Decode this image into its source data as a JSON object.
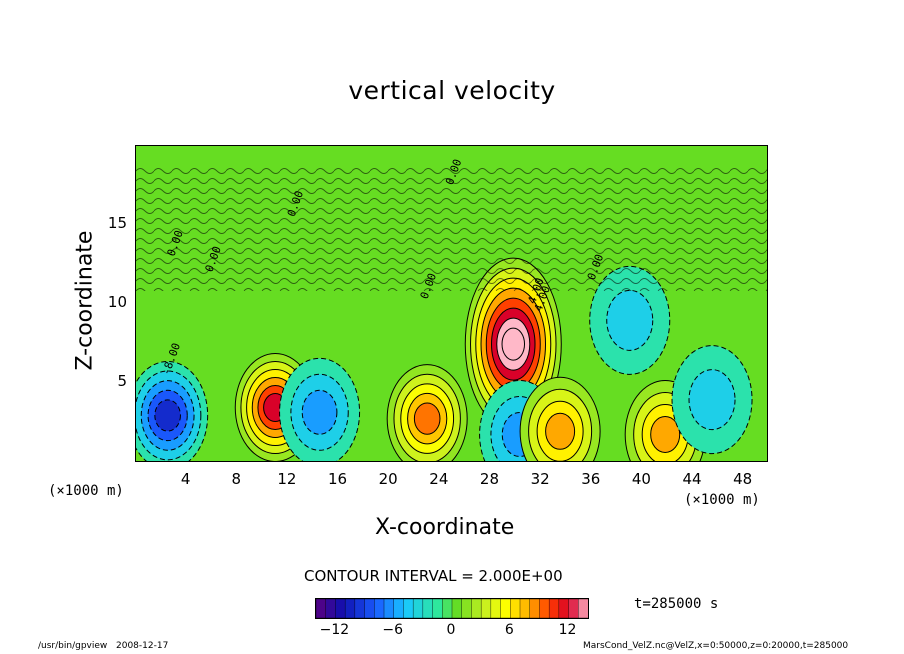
{
  "chart_data": {
    "type": "heatmap",
    "title": "vertical velocity",
    "xlabel": "X-coordinate",
    "ylabel": "Z-coordinate",
    "x_unit": "(×1000 m)",
    "y_unit": "(×1000 m)",
    "xlim": [
      0,
      50
    ],
    "ylim": [
      0,
      20
    ],
    "x_ticks": [
      "4",
      "8",
      "12",
      "16",
      "20",
      "24",
      "28",
      "32",
      "36",
      "40",
      "44",
      "48"
    ],
    "y_ticks": [
      "5",
      "10",
      "15"
    ],
    "contour_interval": "CONTOUR INTERVAL = 2.000E+00",
    "contour_labels": [
      "0.00",
      "-8.00",
      "4.00",
      "0.00",
      "0.00",
      "0.00",
      "0.00",
      "4.00",
      "0.00"
    ],
    "colorbar": {
      "range": [
        -14,
        14
      ],
      "ticks": [
        "−12",
        "−6",
        "0",
        "6",
        "12"
      ]
    },
    "features": [
      {
        "x": 2.5,
        "z": 3.0,
        "value": -10,
        "kind": "downdraft"
      },
      {
        "x": 11.0,
        "z": 3.5,
        "value": 12,
        "kind": "updraft"
      },
      {
        "x": 14.5,
        "z": 3.2,
        "value": -6,
        "kind": "downdraft"
      },
      {
        "x": 23.0,
        "z": 2.8,
        "value": 9,
        "kind": "updraft"
      },
      {
        "x": 29.8,
        "z": 7.5,
        "value": 16,
        "kind": "updraft"
      },
      {
        "x": 30.3,
        "z": 1.8,
        "value": -6,
        "kind": "downdraft"
      },
      {
        "x": 33.5,
        "z": 2.0,
        "value": 8,
        "kind": "updraft"
      },
      {
        "x": 39.0,
        "z": 9.0,
        "value": -4,
        "kind": "downdraft"
      },
      {
        "x": 41.8,
        "z": 1.8,
        "value": 8,
        "kind": "updraft"
      },
      {
        "x": 45.5,
        "z": 4.0,
        "value": -4,
        "kind": "downdraft"
      }
    ]
  },
  "annotations": {
    "time": "t=285000 s",
    "program": "/usr/bin/gpview",
    "date": "2008-12-17",
    "source": "MarsCond_VelZ.nc@VelZ,x=0:50000,z=0:20000,t=285000"
  }
}
